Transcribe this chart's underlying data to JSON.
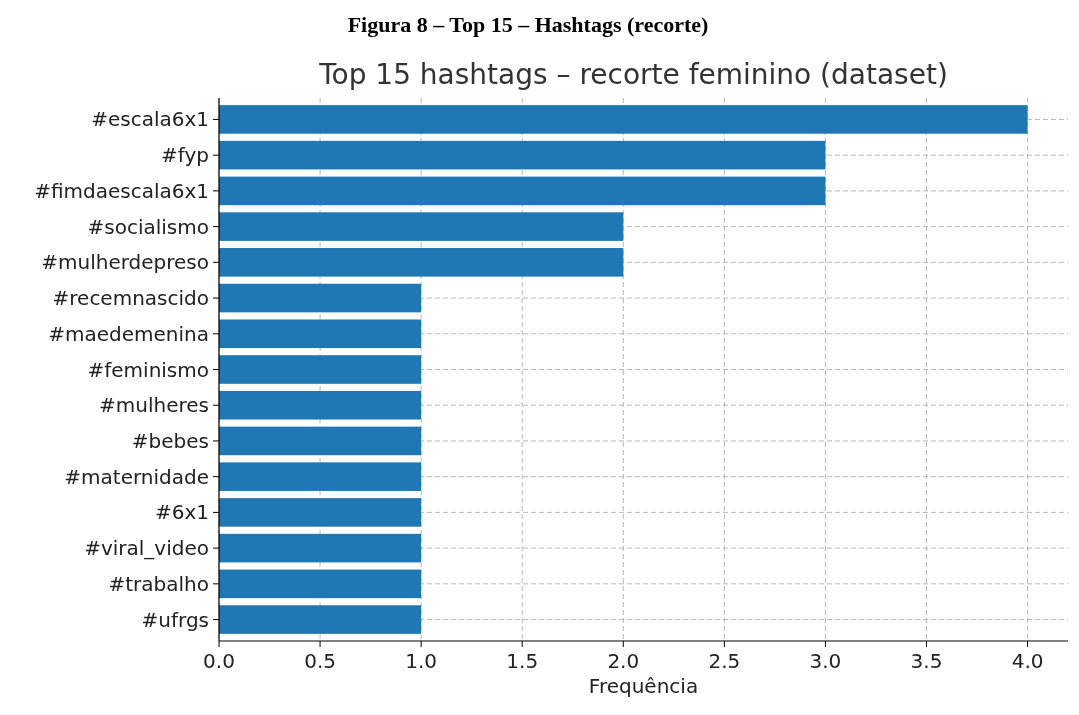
{
  "chart_data": {
    "type": "bar",
    "orientation": "horizontal",
    "title": "Figura 8 – Top 15 – Hashtags (recorte)",
    "subtitle": "Top 15 hashtags – recorte feminino (dataset)",
    "xlabel": "Frequência",
    "categories": [
      "#escala6x1",
      "#fyp",
      "#fimdaescala6x1",
      "#socialismo",
      "#mulherdepreso",
      "#recemnascido",
      "#maedemenina",
      "#feminismo",
      "#mulheres",
      "#bebes",
      "#maternidade",
      "#6x1",
      "#viral_video",
      "#trabalho",
      "#ufrgs"
    ],
    "values": [
      4,
      3,
      3,
      2,
      2,
      1,
      1,
      1,
      1,
      1,
      1,
      1,
      1,
      1,
      1
    ],
    "color": "#1f77b4",
    "xlim": [
      0,
      4.2
    ],
    "xticks": [
      {
        "value": 0,
        "label": "0.0"
      },
      {
        "value": 0.5,
        "label": "0.5"
      },
      {
        "value": 1,
        "label": "1.0"
      },
      {
        "value": 1.5,
        "label": "1.5"
      },
      {
        "value": 2,
        "label": "2.0"
      },
      {
        "value": 2.5,
        "label": "2.5"
      },
      {
        "value": 3,
        "label": "3.0"
      },
      {
        "value": 3.5,
        "label": "3.5"
      },
      {
        "value": 4,
        "label": "4.0"
      }
    ],
    "grid": true
  }
}
